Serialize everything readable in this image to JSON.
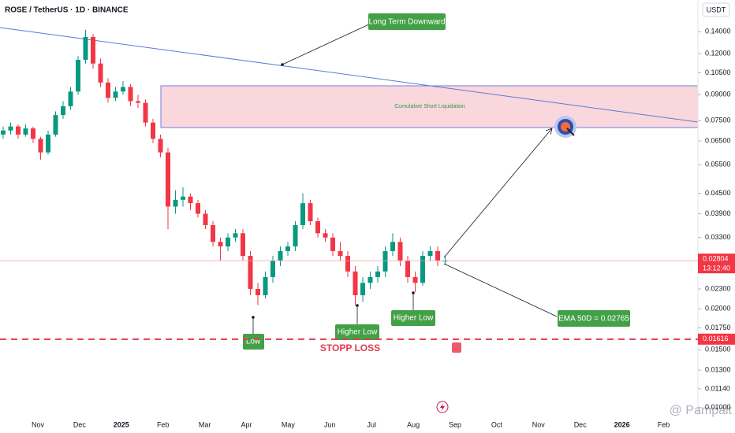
{
  "chart_data": {
    "type": "candlestick",
    "title": "ROSE / TetherUS · 1D · BINANCE",
    "y_unit": "USDT",
    "log_scale": true,
    "grid": false,
    "up_color": "#089981",
    "down_color": "#f23645",
    "ylim": [
      0.0096,
      0.175
    ],
    "yticks": [
      {
        "value": 0.14,
        "label": "0.14000"
      },
      {
        "value": 0.12,
        "label": "0.12000"
      },
      {
        "value": 0.105,
        "label": "0.10500"
      },
      {
        "value": 0.09,
        "label": "0.09000"
      },
      {
        "value": 0.075,
        "label": "0.07500"
      },
      {
        "value": 0.065,
        "label": "0.06500"
      },
      {
        "value": 0.055,
        "label": "0.05500"
      },
      {
        "value": 0.045,
        "label": "0.04500"
      },
      {
        "value": 0.039,
        "label": "0.03900"
      },
      {
        "value": 0.033,
        "label": "0.03300"
      },
      {
        "value": 0.023,
        "label": "0.02300"
      },
      {
        "value": 0.02,
        "label": "0.02000"
      },
      {
        "value": 0.0175,
        "label": "0.01750"
      },
      {
        "value": 0.015,
        "label": "0.01500"
      },
      {
        "value": 0.013,
        "label": "0.01300"
      },
      {
        "value": 0.0114,
        "label": "0.01140"
      },
      {
        "value": 0.01,
        "label": "0.01000"
      }
    ],
    "x_labels": [
      "Nov",
      "Dec",
      "2025",
      "Feb",
      "Mar",
      "Apr",
      "May",
      "Jun",
      "Jul",
      "Aug",
      "Sep",
      "Oct",
      "Nov",
      "Dec",
      "2026",
      "Feb"
    ],
    "candles": [
      [
        0.068,
        0.072,
        0.066,
        0.07
      ],
      [
        0.07,
        0.074,
        0.068,
        0.072
      ],
      [
        0.072,
        0.073,
        0.066,
        0.068
      ],
      [
        0.068,
        0.073,
        0.067,
        0.071
      ],
      [
        0.071,
        0.072,
        0.064,
        0.066
      ],
      [
        0.066,
        0.067,
        0.057,
        0.06
      ],
      [
        0.06,
        0.07,
        0.059,
        0.068
      ],
      [
        0.068,
        0.08,
        0.067,
        0.078
      ],
      [
        0.078,
        0.086,
        0.076,
        0.083
      ],
      [
        0.083,
        0.095,
        0.081,
        0.092
      ],
      [
        0.092,
        0.118,
        0.09,
        0.115
      ],
      [
        0.115,
        0.142,
        0.112,
        0.135
      ],
      [
        0.135,
        0.138,
        0.108,
        0.112
      ],
      [
        0.112,
        0.116,
        0.095,
        0.098
      ],
      [
        0.098,
        0.101,
        0.085,
        0.088
      ],
      [
        0.088,
        0.095,
        0.086,
        0.092
      ],
      [
        0.092,
        0.099,
        0.09,
        0.095
      ],
      [
        0.095,
        0.097,
        0.083,
        0.086
      ],
      [
        0.086,
        0.09,
        0.082,
        0.085
      ],
      [
        0.085,
        0.087,
        0.072,
        0.074
      ],
      [
        0.074,
        0.076,
        0.064,
        0.066
      ],
      [
        0.066,
        0.068,
        0.058,
        0.06
      ],
      [
        0.06,
        0.062,
        0.035,
        0.041
      ],
      [
        0.041,
        0.046,
        0.039,
        0.043
      ],
      [
        0.043,
        0.047,
        0.041,
        0.044
      ],
      [
        0.044,
        0.045,
        0.04,
        0.042
      ],
      [
        0.042,
        0.043,
        0.038,
        0.039
      ],
      [
        0.039,
        0.04,
        0.035,
        0.036
      ],
      [
        0.036,
        0.037,
        0.031,
        0.032
      ],
      [
        0.032,
        0.033,
        0.028,
        0.031
      ],
      [
        0.031,
        0.034,
        0.03,
        0.033
      ],
      [
        0.033,
        0.035,
        0.032,
        0.034
      ],
      [
        0.034,
        0.035,
        0.028,
        0.029
      ],
      [
        0.029,
        0.03,
        0.022,
        0.023
      ],
      [
        0.023,
        0.024,
        0.0205,
        0.022
      ],
      [
        0.022,
        0.026,
        0.0215,
        0.025
      ],
      [
        0.025,
        0.029,
        0.024,
        0.028
      ],
      [
        0.028,
        0.031,
        0.027,
        0.03
      ],
      [
        0.03,
        0.032,
        0.029,
        0.031
      ],
      [
        0.031,
        0.037,
        0.03,
        0.036
      ],
      [
        0.036,
        0.045,
        0.035,
        0.042
      ],
      [
        0.042,
        0.043,
        0.036,
        0.037
      ],
      [
        0.037,
        0.038,
        0.033,
        0.034
      ],
      [
        0.034,
        0.035,
        0.032,
        0.033
      ],
      [
        0.033,
        0.034,
        0.029,
        0.03
      ],
      [
        0.03,
        0.032,
        0.028,
        0.029
      ],
      [
        0.029,
        0.03,
        0.025,
        0.026
      ],
      [
        0.026,
        0.027,
        0.0205,
        0.022
      ],
      [
        0.022,
        0.025,
        0.021,
        0.024
      ],
      [
        0.024,
        0.026,
        0.023,
        0.025
      ],
      [
        0.025,
        0.027,
        0.024,
        0.026
      ],
      [
        0.026,
        0.031,
        0.025,
        0.03
      ],
      [
        0.03,
        0.034,
        0.029,
        0.032
      ],
      [
        0.032,
        0.033,
        0.027,
        0.028
      ],
      [
        0.028,
        0.029,
        0.024,
        0.025
      ],
      [
        0.025,
        0.026,
        0.0225,
        0.024
      ],
      [
        0.024,
        0.03,
        0.0235,
        0.029
      ],
      [
        0.029,
        0.031,
        0.028,
        0.03
      ],
      [
        0.03,
        0.031,
        0.027,
        0.028
      ],
      [
        0.028,
        0.029,
        0.0272,
        0.02804
      ]
    ],
    "current_price": {
      "value": 0.02804,
      "label": "0.02804"
    },
    "countdown": "13:12:40",
    "stop_loss": {
      "value": 0.01616,
      "label": "0.01616"
    },
    "annotations": {
      "trend": "Long Term Downward",
      "zone": "Cumulative Short Liquidation",
      "low": "Low",
      "higher_low_1": "Higher Low",
      "higher_low_2": "Higher Low",
      "stop_loss": "STOPP LOSS",
      "ema": "EMA 50D = 0.02765"
    },
    "watermark": "@ Pampait"
  }
}
